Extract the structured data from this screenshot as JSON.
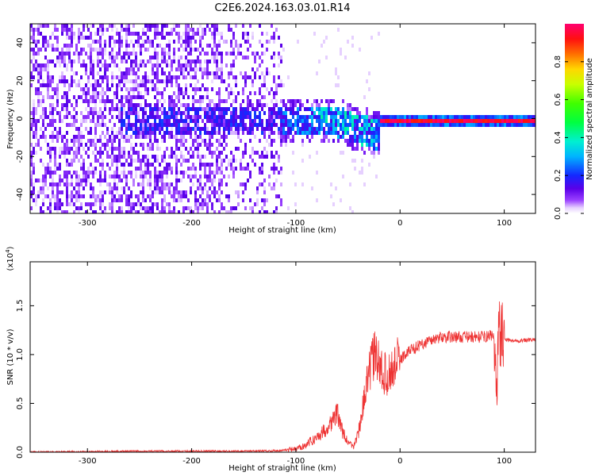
{
  "title": "C2E6.2024.163.03.01.R14",
  "chart_data": [
    {
      "type": "heatmap",
      "xlabel": "Height of straight line (km)",
      "ylabel": "Frequency (Hz)",
      "xlim": [
        -355,
        130
      ],
      "ylim": [
        -50,
        50
      ],
      "xticks": [
        -300,
        -200,
        -100,
        0,
        100
      ],
      "yticks": [
        -40,
        -20,
        0,
        20,
        40
      ],
      "colorbar": {
        "label": "Normalized spectral amplitude",
        "range": [
          0.0,
          1.0
        ],
        "ticks": [
          0.0,
          0.2,
          0.4,
          0.6,
          0.8
        ],
        "colormap": "gist_ncar-like (white → purple → blue → cyan → green → yellow → red → magenta)"
      },
      "regions": [
        {
          "x": [
            -355,
            -115
          ],
          "frequency_spread_hz": 50,
          "level": "low-noise-broad"
        },
        {
          "x": [
            -110,
            -20
          ],
          "frequency_spread_hz": 10,
          "level": "medium-drifting"
        },
        {
          "x": [
            -20,
            130
          ],
          "frequency_spread_hz": 1,
          "level": "high-narrow-at-0Hz"
        }
      ],
      "grid": false
    },
    {
      "type": "line",
      "xlabel": "Height of straight line (km)",
      "ylabel": "SNR (10 * v/v)",
      "yscale_label": "(x10^4)",
      "xlim": [
        -355,
        130
      ],
      "ylim": [
        0,
        1.95
      ],
      "xticks": [
        -300,
        -200,
        -100,
        0,
        100
      ],
      "yticks": [
        0.0,
        0.5,
        1.0,
        1.5
      ],
      "series": [
        {
          "color": "#ee3333",
          "x": [
            -355,
            -300,
            -250,
            -200,
            -150,
            -120,
            -100,
            -90,
            -80,
            -70,
            -60,
            -55,
            -50,
            -45,
            -40,
            -35,
            -30,
            -25,
            -20,
            -15,
            -10,
            -5,
            0,
            10,
            20,
            30,
            40,
            60,
            80,
            90,
            92,
            95,
            100,
            110,
            130
          ],
          "y": [
            0.0,
            0.005,
            0.01,
            0.01,
            0.01,
            0.015,
            0.03,
            0.08,
            0.15,
            0.25,
            0.4,
            0.2,
            0.1,
            0.05,
            0.2,
            0.5,
            0.8,
            1.0,
            0.9,
            0.8,
            0.8,
            0.9,
            0.95,
            1.05,
            1.1,
            1.15,
            1.18,
            1.18,
            1.18,
            1.2,
            0.6,
            1.25,
            1.15,
            1.14,
            1.15
          ]
        }
      ],
      "grid": false
    }
  ]
}
